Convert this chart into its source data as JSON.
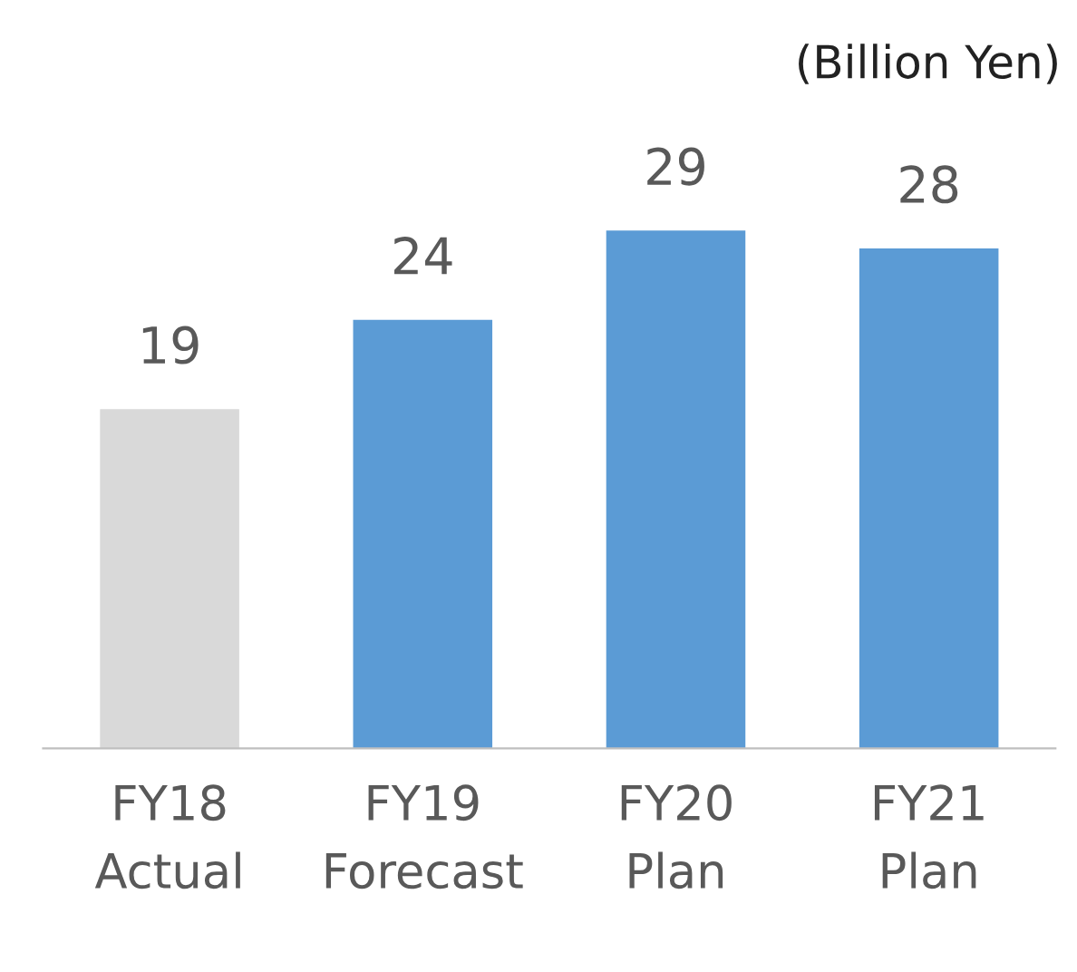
{
  "chart_data": {
    "type": "bar",
    "ylabel": "(Billion Yen)",
    "categories": [
      "FY18\nActual",
      "FY19\nForecast",
      "FY20\nPlan",
      "FY21\nPlan"
    ],
    "values": [
      19,
      24,
      29,
      28
    ],
    "colors": [
      "#d9d9d9",
      "#5b9bd5",
      "#5b9bd5",
      "#5b9bd5"
    ],
    "data_labels": true,
    "grid": false,
    "legend": false
  }
}
